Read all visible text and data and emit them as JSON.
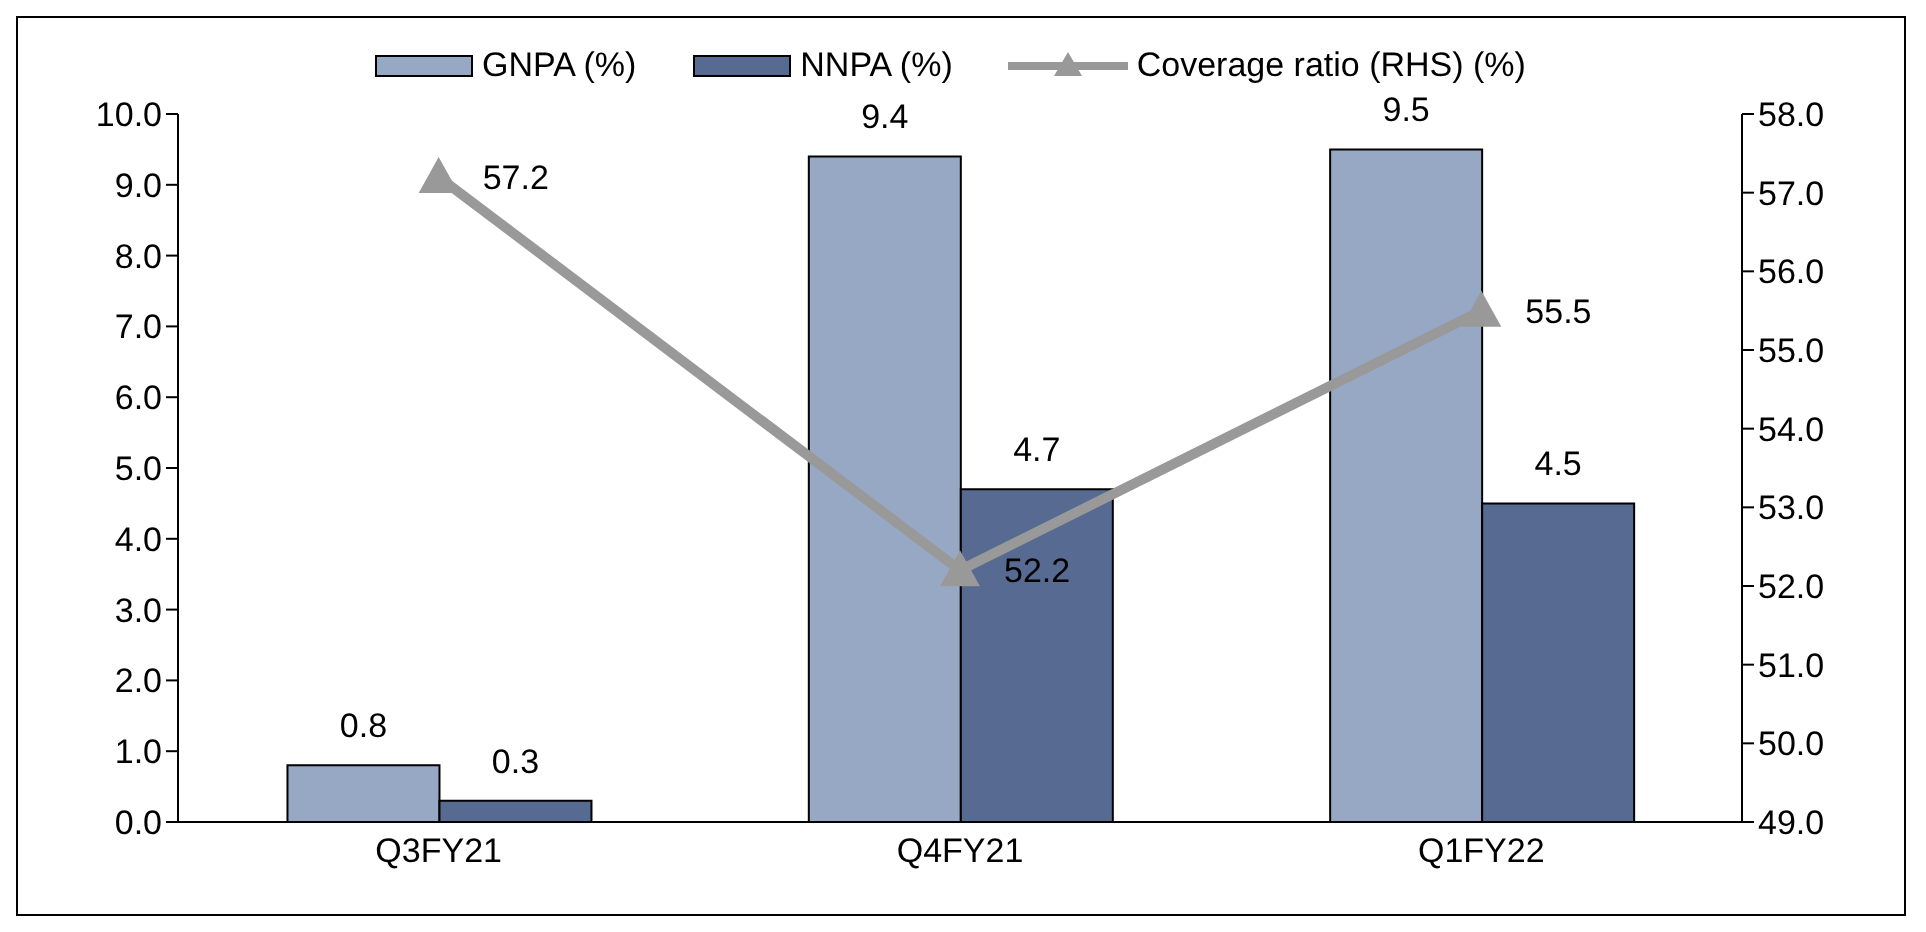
{
  "chart_data": {
    "type": "bar",
    "categories": [
      "Q3FY21",
      "Q4FY21",
      "Q1FY22"
    ],
    "series": [
      {
        "name": "GNPA (%)",
        "color": "#97a8c4",
        "values": [
          0.8,
          9.4,
          9.5
        ]
      },
      {
        "name": "NNPA (%)",
        "color": "#566a92",
        "values": [
          0.3,
          4.7,
          4.5
        ]
      },
      {
        "name": "Coverage ratio (RHS) (%)",
        "type": "line",
        "axis": "y2",
        "color": "#999999",
        "marker": "triangle",
        "values": [
          57.2,
          52.2,
          55.5
        ]
      }
    ],
    "ylim": [
      0,
      10
    ],
    "yticks": [
      {
        "value": 0,
        "label": "0.0"
      },
      {
        "value": 1,
        "label": "1.0"
      },
      {
        "value": 2,
        "label": "2.0"
      },
      {
        "value": 3,
        "label": "3.0"
      },
      {
        "value": 4,
        "label": "4.0"
      },
      {
        "value": 5,
        "label": "5.0"
      },
      {
        "value": 6,
        "label": "6.0"
      },
      {
        "value": 7,
        "label": "7.0"
      },
      {
        "value": 8,
        "label": "8.0"
      },
      {
        "value": 9,
        "label": "9.0"
      },
      {
        "value": 10,
        "label": "10.0"
      }
    ],
    "y2lim": [
      49,
      58
    ],
    "y2ticks": [
      {
        "value": 49,
        "label": "49.0"
      },
      {
        "value": 50,
        "label": "50.0"
      },
      {
        "value": 51,
        "label": "51.0"
      },
      {
        "value": 52,
        "label": "52.0"
      },
      {
        "value": 53,
        "label": "53.0"
      },
      {
        "value": 54,
        "label": "54.0"
      },
      {
        "value": 55,
        "label": "55.0"
      },
      {
        "value": 56,
        "label": "56.0"
      },
      {
        "value": 57,
        "label": "57.0"
      },
      {
        "value": 58,
        "label": "58.0"
      }
    ],
    "data_labels": true,
    "grid": false,
    "legend": "top"
  }
}
